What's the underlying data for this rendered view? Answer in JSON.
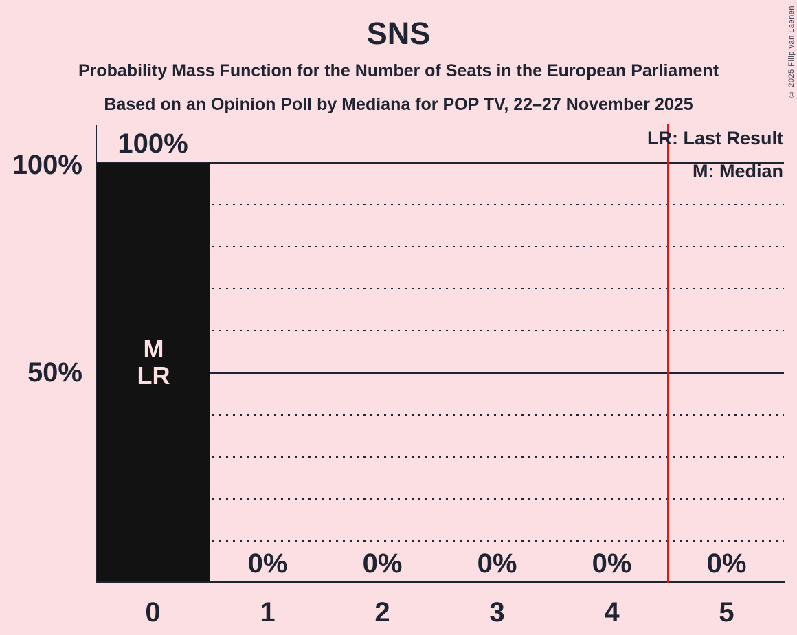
{
  "header": {
    "title": "SNS",
    "subtitle_line1": "Probability Mass Function for the Number of Seats in the European Parliament",
    "subtitle_line2": "Based on an Opinion Poll by Mediana for POP TV, 22–27 November 2025"
  },
  "copyright": "© 2025 Filip van Laenen",
  "legend": {
    "lr": "LR: Last Result",
    "m": "M: Median"
  },
  "y_axis": {
    "labels": [
      "100%",
      "50%"
    ]
  },
  "colors": {
    "background": "#fcdfe2",
    "bar": "#121212",
    "text": "#1f2433",
    "majority_line": "#f2100e"
  },
  "chart_data": {
    "type": "bar",
    "title": "SNS",
    "subtitle": "Probability Mass Function for the Number of Seats in the European Parliament",
    "source_line": "Based on an Opinion Poll by Mediana for POP TV, 22–27 November 2025",
    "categories": [
      "0",
      "1",
      "2",
      "3",
      "4",
      "5"
    ],
    "values": [
      100,
      0,
      0,
      0,
      0,
      0
    ],
    "value_labels": [
      "100%",
      "0%",
      "0%",
      "0%",
      "0%",
      "0%"
    ],
    "xlabel": "",
    "ylabel": "",
    "ylim": [
      0,
      100
    ],
    "y_axis_labels": [
      "100%",
      "50%"
    ],
    "solid_gridlines_pct": [
      100,
      50
    ],
    "dotted_gridlines_pct": [
      90,
      80,
      70,
      60,
      40,
      30,
      20,
      10
    ],
    "grid": "horizontal-dotted",
    "median_seats": 0,
    "last_result_seats": 0,
    "bar_annotations": [
      "M",
      "LR"
    ],
    "annotated_bar_category": "0",
    "majority_line_at_seats": 4.5,
    "legend": [
      "LR: Last Result",
      "M: Median"
    ],
    "legend_position": "top-right"
  }
}
